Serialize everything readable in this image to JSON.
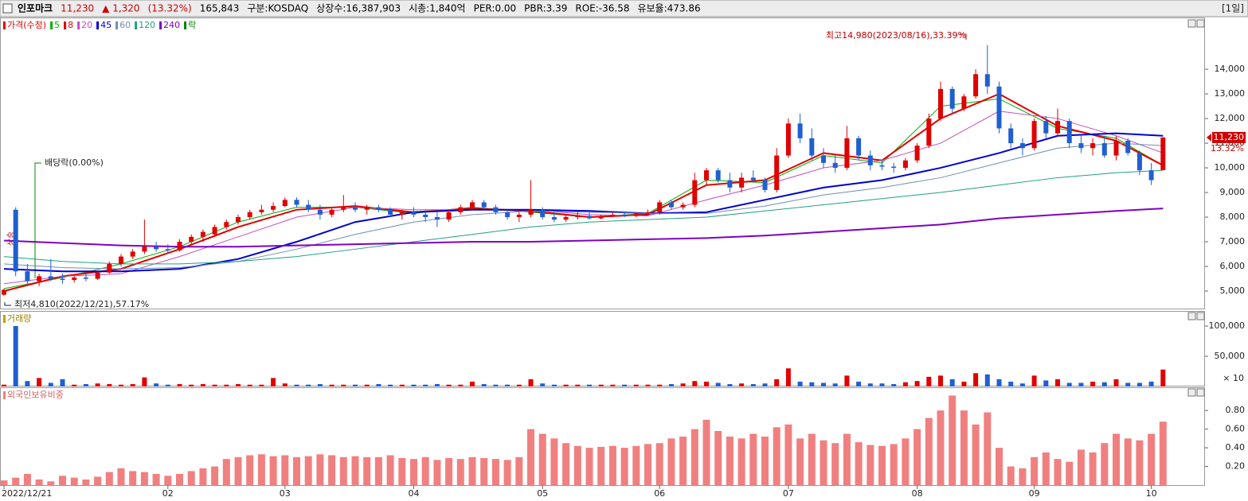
{
  "header": {
    "name": "인포마크",
    "price": "11,230",
    "change": "▲ 1,320",
    "change_pct": "(13.32%)",
    "volume": "165,843",
    "market": "구분:KOSDAQ",
    "shares": "상장수:16,387,903",
    "cap": "시총:1,840억",
    "per": "PER:0.00",
    "pbr": "PBR:3.39",
    "roe": "ROE:-36.58",
    "reserve": "유보율:473.86",
    "period": "[1일]"
  },
  "chart_data": [
    {
      "type": "candlestick",
      "name": "가격(수정)",
      "up_color": "#e00000",
      "down_color": "#1f5fd0",
      "dividend_legend": "락",
      "high_label": "최고14,980(2023/08/16),33.39%",
      "low_label": "최저4,810(2022/12/21),57.17%",
      "dividend_label": "배당락(0.00%)",
      "rise_label": "상승",
      "last_price": {
        "value": 11230,
        "label": "11,230"
      },
      "last_change": "13.32%",
      "ylim": [
        4290,
        16100
      ],
      "yticks": [
        {
          "value": 5000,
          "label": "5,000"
        },
        {
          "value": 6000,
          "label": "6,000"
        },
        {
          "value": 7000,
          "label": "7,000"
        },
        {
          "value": 8000,
          "label": "8,000"
        },
        {
          "value": 9000,
          "label": "9,000"
        },
        {
          "value": 10000,
          "label": "10,000"
        },
        {
          "value": 11000,
          "label": "11,000"
        },
        {
          "value": 12000,
          "label": "12,000"
        },
        {
          "value": 13000,
          "label": "13,000"
        },
        {
          "value": 14000,
          "label": "14,000"
        }
      ],
      "open": [
        4850,
        8300,
        5800,
        5400,
        5600,
        5500,
        5450,
        5550,
        5500,
        5750,
        6100,
        6400,
        6600,
        6800,
        6700,
        6650,
        7000,
        7200,
        7300,
        7600,
        7800,
        8000,
        8200,
        8300,
        8450,
        8700,
        8500,
        8300,
        8100,
        8300,
        8400,
        8300,
        8400,
        8300,
        8100,
        8200,
        8100,
        8000,
        7900,
        8200,
        8400,
        8600,
        8400,
        8200,
        8000,
        8100,
        8300,
        8000,
        7900,
        8000,
        8050,
        7950,
        8050,
        8100,
        8050,
        8150,
        8200,
        8600,
        8400,
        8500,
        9500,
        9900,
        9500,
        9200,
        9600,
        9500,
        9100,
        10500,
        11800,
        11200,
        10500,
        10200,
        10000,
        11200,
        10500,
        10100,
        10050,
        10000,
        10300,
        10900,
        12000,
        13200,
        12400,
        12900,
        13800,
        13300,
        11600,
        11000,
        10800,
        11900,
        11400,
        11900,
        11000,
        10800,
        11000,
        10500,
        11100,
        10600,
        9900,
        9910
      ],
      "high": [
        5100,
        8400,
        6100,
        5700,
        6300,
        5700,
        5600,
        5700,
        5800,
        6200,
        6500,
        6700,
        7900,
        7000,
        6900,
        7100,
        7300,
        7500,
        7700,
        7900,
        8100,
        8300,
        8500,
        8600,
        8800,
        8800,
        8700,
        8500,
        8400,
        8900,
        8600,
        8500,
        8500,
        8400,
        8300,
        8400,
        8300,
        8200,
        8300,
        8500,
        8700,
        8700,
        8500,
        8300,
        8200,
        9500,
        8400,
        8200,
        8100,
        8200,
        8200,
        8100,
        8200,
        8200,
        8200,
        8300,
        8700,
        8700,
        8600,
        9800,
        10000,
        10000,
        9800,
        9800,
        9900,
        9600,
        10800,
        12000,
        12200,
        11600,
        10800,
        10500,
        11700,
        11300,
        10700,
        10300,
        10200,
        10400,
        11000,
        12200,
        13500,
        13300,
        13000,
        14000,
        14980,
        13500,
        11800,
        11200,
        12000,
        12100,
        12400,
        12000,
        11300,
        11200,
        11300,
        11300,
        11200,
        10700,
        10200,
        11250
      ],
      "low": [
        4810,
        5600,
        5200,
        5200,
        5400,
        5300,
        5350,
        5400,
        5450,
        5700,
        6000,
        6300,
        6500,
        6600,
        6500,
        6600,
        6900,
        7000,
        7200,
        7500,
        7700,
        7900,
        8100,
        8200,
        8400,
        8400,
        8200,
        7900,
        8000,
        8200,
        8200,
        8100,
        8200,
        8000,
        7900,
        8000,
        7800,
        7600,
        7800,
        8100,
        8300,
        8300,
        8100,
        7900,
        7800,
        8000,
        7900,
        7800,
        7800,
        7900,
        7900,
        7900,
        8000,
        8000,
        8000,
        8100,
        8100,
        8300,
        8300,
        8400,
        9300,
        9400,
        9000,
        9000,
        9400,
        9000,
        9000,
        10400,
        11000,
        10300,
        10000,
        9800,
        9900,
        10300,
        9900,
        9900,
        9800,
        9900,
        10200,
        10800,
        11900,
        12200,
        12300,
        12800,
        13000,
        11400,
        10800,
        10500,
        10700,
        11200,
        11300,
        10800,
        10600,
        10500,
        10400,
        10300,
        10500,
        9700,
        9300,
        9900
      ],
      "close": [
        5050,
        5800,
        5400,
        5600,
        5500,
        5450,
        5550,
        5500,
        5750,
        6100,
        6400,
        6600,
        6800,
        6700,
        6650,
        7000,
        7200,
        7400,
        7600,
        7800,
        8000,
        8200,
        8300,
        8450,
        8700,
        8500,
        8300,
        8100,
        8300,
        8400,
        8300,
        8400,
        8300,
        8100,
        8200,
        8100,
        8000,
        7900,
        8200,
        8400,
        8600,
        8400,
        8200,
        8000,
        8100,
        8300,
        8000,
        7900,
        8000,
        8050,
        7950,
        8050,
        8100,
        8050,
        8150,
        8200,
        8600,
        8400,
        8500,
        9500,
        9900,
        9500,
        9200,
        9600,
        9500,
        9100,
        10500,
        11800,
        11200,
        10500,
        10200,
        10000,
        11200,
        10500,
        10100,
        10050,
        10000,
        10300,
        10900,
        12000,
        13200,
        12400,
        12900,
        13800,
        13300,
        11600,
        11000,
        10800,
        11900,
        11400,
        11900,
        11000,
        10800,
        11000,
        10500,
        11100,
        10600,
        9900,
        9500,
        11230
      ],
      "ma_x": [
        0,
        5,
        10,
        15,
        20,
        25,
        30,
        35,
        40,
        45,
        50,
        55,
        60,
        65,
        70,
        75,
        80,
        85,
        90,
        95,
        99
      ],
      "series": [
        {
          "name": "5",
          "color": "#00b000",
          "width": 1,
          "values": [
            5100,
            5550,
            6100,
            6800,
            7800,
            8400,
            8400,
            8150,
            8400,
            8200,
            8000,
            8150,
            9500,
            9400,
            10500,
            10200,
            12500,
            12800,
            11600,
            11200,
            10100
          ]
        },
        {
          "name": "8",
          "color": "#e00000",
          "width": 2,
          "values": [
            5000,
            5600,
            5900,
            6700,
            7600,
            8300,
            8450,
            8200,
            8350,
            8250,
            8000,
            8100,
            9300,
            9500,
            10600,
            10300,
            12000,
            13000,
            11700,
            11100,
            10100
          ]
        },
        {
          "name": "20",
          "color": "#c050c0",
          "width": 1,
          "values": [
            5300,
            5600,
            5700,
            6400,
            7200,
            8000,
            8400,
            8300,
            8300,
            8300,
            8100,
            8050,
            8700,
            9300,
            10000,
            10300,
            11000,
            12300,
            12000,
            11300,
            10600
          ]
        },
        {
          "name": "45",
          "color": "#0000d0",
          "width": 2,
          "values": [
            5900,
            5800,
            5800,
            5900,
            6300,
            7000,
            7800,
            8200,
            8300,
            8300,
            8250,
            8150,
            8200,
            8700,
            9200,
            9500,
            10000,
            10600,
            11300,
            11400,
            11300
          ]
        },
        {
          "name": "60",
          "color": "#6f8fb8",
          "width": 1,
          "values": [
            6100,
            5950,
            5900,
            5950,
            6200,
            6700,
            7300,
            7800,
            8100,
            8250,
            8200,
            8150,
            8150,
            8450,
            8900,
            9200,
            9600,
            10200,
            10800,
            11000,
            10900
          ]
        },
        {
          "name": "120",
          "color": "#20a080",
          "width": 1,
          "values": [
            6400,
            6200,
            6100,
            6100,
            6200,
            6400,
            6700,
            7000,
            7300,
            7600,
            7800,
            7900,
            8000,
            8250,
            8500,
            8750,
            9000,
            9300,
            9600,
            9800,
            9900
          ]
        },
        {
          "name": "240",
          "color": "#8000c0",
          "width": 2,
          "values": [
            7050,
            6950,
            6850,
            6800,
            6800,
            6850,
            6900,
            6950,
            7000,
            7000,
            7050,
            7100,
            7150,
            7250,
            7400,
            7550,
            7700,
            7950,
            8100,
            8250,
            8350
          ]
        }
      ]
    },
    {
      "type": "bar",
      "name": "거래량",
      "unit_label": "× 10",
      "ylim": [
        0,
        123700
      ],
      "yticks": [
        {
          "value": 50000,
          "label": "50,000"
        },
        {
          "value": 100000,
          "label": "100,000"
        }
      ],
      "values": [
        3000,
        100000,
        9000,
        14000,
        6000,
        12000,
        3000,
        4000,
        5000,
        4000,
        3000,
        4000,
        15000,
        5000,
        3000,
        4000,
        3000,
        4000,
        3000,
        3000,
        4000,
        3000,
        3000,
        14000,
        5000,
        3000,
        3000,
        4000,
        3000,
        3000,
        3000,
        3000,
        4000,
        3000,
        3000,
        3000,
        3000,
        4000,
        3000,
        3000,
        8000,
        4000,
        3000,
        3000,
        3000,
        12000,
        5000,
        3000,
        3000,
        3000,
        3000,
        3000,
        3000,
        3000,
        3000,
        3000,
        3000,
        4000,
        5000,
        9000,
        8000,
        6000,
        4000,
        5000,
        4000,
        5000,
        12000,
        30000,
        8000,
        7000,
        6000,
        5000,
        18000,
        8000,
        5000,
        5000,
        4000,
        7000,
        9000,
        16000,
        18000,
        12000,
        8000,
        22000,
        20000,
        12000,
        8000,
        5000,
        18000,
        10000,
        12000,
        6000,
        6000,
        8000,
        7000,
        12000,
        6000,
        6000,
        8000,
        28000
      ]
    },
    {
      "type": "bar",
      "name": "외국인보유비중",
      "color": "#f08080",
      "ylim": [
        0,
        1.04
      ],
      "yticks": [
        {
          "value": 0.2,
          "label": "0.20"
        },
        {
          "value": 0.4,
          "label": "0.40"
        },
        {
          "value": 0.6,
          "label": "0.60"
        },
        {
          "value": 0.8,
          "label": "0.80"
        }
      ],
      "categories": [
        "2022/12/21",
        null,
        null,
        null,
        null,
        null,
        null,
        null,
        null,
        null,
        null,
        null,
        null,
        null,
        "02",
        null,
        null,
        null,
        null,
        null,
        null,
        null,
        null,
        null,
        "03",
        null,
        null,
        null,
        null,
        null,
        null,
        null,
        null,
        null,
        null,
        "04",
        null,
        null,
        null,
        null,
        null,
        null,
        null,
        null,
        null,
        null,
        "05",
        null,
        null,
        null,
        null,
        null,
        null,
        null,
        null,
        null,
        "06",
        null,
        null,
        null,
        null,
        null,
        null,
        null,
        null,
        null,
        null,
        "07",
        null,
        null,
        null,
        null,
        null,
        null,
        null,
        null,
        null,
        null,
        "08",
        null,
        null,
        null,
        null,
        null,
        null,
        null,
        null,
        null,
        "09",
        null,
        null,
        null,
        null,
        null,
        null,
        null,
        null,
        null,
        "10",
        null
      ],
      "values": [
        0.05,
        0.08,
        0.12,
        0.06,
        0.04,
        0.1,
        0.08,
        0.06,
        0.09,
        0.14,
        0.18,
        0.15,
        0.14,
        0.12,
        0.1,
        0.12,
        0.15,
        0.18,
        0.2,
        0.28,
        0.3,
        0.32,
        0.33,
        0.31,
        0.32,
        0.3,
        0.31,
        0.33,
        0.32,
        0.3,
        0.31,
        0.3,
        0.3,
        0.32,
        0.29,
        0.28,
        0.3,
        0.27,
        0.29,
        0.28,
        0.3,
        0.29,
        0.28,
        0.27,
        0.3,
        0.6,
        0.55,
        0.5,
        0.45,
        0.42,
        0.4,
        0.41,
        0.42,
        0.4,
        0.42,
        0.44,
        0.45,
        0.5,
        0.52,
        0.6,
        0.7,
        0.58,
        0.52,
        0.5,
        0.55,
        0.52,
        0.62,
        0.65,
        0.5,
        0.55,
        0.48,
        0.45,
        0.55,
        0.46,
        0.43,
        0.42,
        0.44,
        0.5,
        0.6,
        0.72,
        0.8,
        0.96,
        0.8,
        0.65,
        0.78,
        0.4,
        0.2,
        0.18,
        0.3,
        0.35,
        0.28,
        0.25,
        0.38,
        0.35,
        0.45,
        0.55,
        0.5,
        0.48,
        0.55,
        0.68
      ]
    }
  ]
}
